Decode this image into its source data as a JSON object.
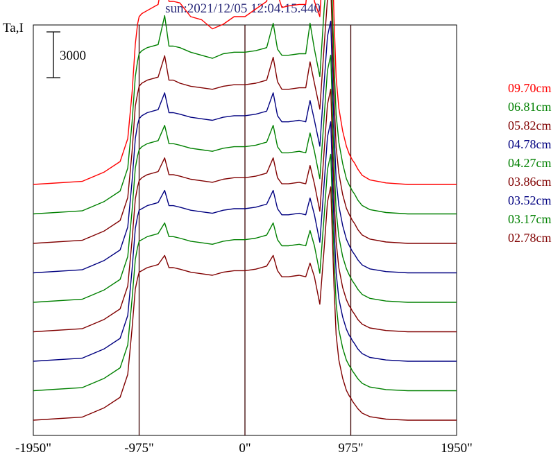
{
  "chart_data": {
    "type": "line",
    "title": "sun:2021/12/05 12:04:15.440",
    "ylabel": "Ta,I",
    "scale_bar_label": "3000",
    "scale_bar_value": 3000,
    "xlim": [
      -1950,
      1950
    ],
    "x_ticks": [
      {
        "value": -1950,
        "label": "-1950\""
      },
      {
        "value": -975,
        "label": "-975\""
      },
      {
        "value": 0,
        "label": "0\""
      },
      {
        "value": 975,
        "label": "975\""
      },
      {
        "value": 1950,
        "label": "1950\""
      }
    ],
    "vertical_lines": [
      -975,
      0,
      975
    ],
    "profile_x": [
      -1950,
      -1500,
      -1300,
      -1150,
      -1080,
      -1040,
      -1010,
      -990,
      -975,
      -950,
      -900,
      -800,
      -740,
      -700,
      -660,
      -600,
      -500,
      -400,
      -300,
      -200,
      -100,
      0,
      100,
      200,
      260,
      300,
      340,
      400,
      500,
      560,
      600,
      640,
      690,
      730,
      760,
      790,
      820,
      840,
      865,
      900,
      935,
      960,
      975,
      990,
      1010,
      1040,
      1080,
      1150,
      1300,
      1500,
      1950
    ],
    "series": [
      {
        "name": "09.70cm",
        "color": "#ff0000",
        "values": [
          0,
          200,
          800,
          1500,
          3000,
          6000,
          9200,
          10500,
          11000,
          11200,
          11400,
          11800,
          14200,
          12000,
          12000,
          11900,
          11000,
          10800,
          10200,
          10500,
          11000,
          11000,
          11500,
          12000,
          14000,
          12500,
          11600,
          11700,
          11800,
          11800,
          14500,
          12000,
          11000,
          16000,
          18000,
          19000,
          11000,
          7000,
          5000,
          3500,
          2500,
          2000,
          1800,
          1600,
          1400,
          1000,
          600,
          300,
          100,
          0,
          0
        ]
      },
      {
        "name": "06.81cm",
        "color": "#008000",
        "values": [
          0,
          200,
          800,
          1500,
          3000,
          6000,
          9000,
          10000,
          10500,
          10700,
          10900,
          11100,
          13000,
          11000,
          11000,
          10900,
          10600,
          10400,
          10200,
          10500,
          10600,
          10600,
          10700,
          10900,
          12500,
          10800,
          10400,
          10400,
          10500,
          10500,
          12500,
          10800,
          9000,
          13500,
          16000,
          17500,
          10000,
          6500,
          4700,
          3300,
          2300,
          1900,
          1700,
          1500,
          1300,
          900,
          550,
          280,
          90,
          0,
          0
        ]
      },
      {
        "name": "05.82cm",
        "color": "#800000",
        "values": [
          0,
          200,
          800,
          1500,
          3000,
          6000,
          9000,
          9800,
          10300,
          10500,
          10700,
          10900,
          12300,
          10700,
          10700,
          10500,
          10300,
          10200,
          10100,
          10300,
          10400,
          10400,
          10500,
          10700,
          12200,
          10600,
          10100,
          10100,
          10200,
          10200,
          11900,
          10500,
          8800,
          13000,
          16000,
          17000,
          9800,
          6300,
          4600,
          3200,
          2300,
          1900,
          1700,
          1500,
          1300,
          900,
          550,
          280,
          90,
          0,
          0
        ]
      },
      {
        "name": "04.78cm",
        "color": "#000080",
        "values": [
          0,
          200,
          800,
          1500,
          3000,
          6000,
          8800,
          9700,
          10100,
          10300,
          10500,
          10700,
          11800,
          10500,
          10500,
          10400,
          10200,
          10100,
          10000,
          10200,
          10300,
          10300,
          10400,
          10600,
          11800,
          10300,
          9900,
          9900,
          10000,
          9900,
          11300,
          10000,
          8300,
          12500,
          15500,
          16500,
          9500,
          6100,
          4400,
          3100,
          2200,
          1800,
          1600,
          1400,
          1200,
          850,
          520,
          260,
          80,
          0,
          0
        ]
      },
      {
        "name": "04.27cm",
        "color": "#008000",
        "values": [
          0,
          200,
          800,
          1500,
          3000,
          6000,
          8800,
          9600,
          10000,
          10200,
          10400,
          10600,
          11600,
          10400,
          10400,
          10300,
          10100,
          10000,
          9900,
          10100,
          10200,
          10200,
          10300,
          10500,
          11600,
          10200,
          9800,
          9800,
          9900,
          9800,
          11100,
          9900,
          8100,
          12200,
          15200,
          16200,
          9300,
          6000,
          4300,
          3000,
          2200,
          1800,
          1600,
          1400,
          1200,
          850,
          520,
          260,
          80,
          0,
          0
        ]
      },
      {
        "name": "03.86cm",
        "color": "#800000",
        "values": [
          0,
          200,
          800,
          1500,
          3000,
          6000,
          8700,
          9500,
          9900,
          10100,
          10300,
          10500,
          11400,
          10300,
          10300,
          10200,
          10000,
          9900,
          9800,
          10000,
          10100,
          10100,
          10200,
          10400,
          11400,
          10100,
          9700,
          9700,
          9800,
          9700,
          10900,
          9700,
          7900,
          11900,
          14900,
          15900,
          9100,
          5900,
          4200,
          2900,
          2100,
          1700,
          1550,
          1350,
          1150,
          800,
          500,
          250,
          80,
          0,
          0
        ]
      },
      {
        "name": "03.52cm",
        "color": "#000080",
        "values": [
          0,
          200,
          800,
          1500,
          3000,
          6000,
          8700,
          9500,
          9900,
          10000,
          10200,
          10400,
          11200,
          10200,
          10200,
          10100,
          9900,
          9800,
          9700,
          9900,
          10000,
          10000,
          10100,
          10300,
          11200,
          10000,
          9600,
          9600,
          9700,
          9600,
          10700,
          9600,
          7800,
          11700,
          14700,
          15700,
          9000,
          5800,
          4100,
          2900,
          2100,
          1700,
          1550,
          1350,
          1150,
          800,
          500,
          250,
          80,
          0,
          0
        ]
      },
      {
        "name": "03.17cm",
        "color": "#008000",
        "values": [
          0,
          200,
          800,
          1500,
          3000,
          6000,
          8600,
          9400,
          9800,
          9900,
          10100,
          10300,
          11000,
          10100,
          10100,
          10000,
          9800,
          9700,
          9600,
          9800,
          9900,
          9900,
          10000,
          10200,
          11000,
          9900,
          9500,
          9500,
          9600,
          9500,
          10500,
          9500,
          7700,
          11500,
          14500,
          15500,
          8900,
          5700,
          4000,
          2800,
          2000,
          1650,
          1500,
          1300,
          1100,
          780,
          480,
          240,
          75,
          0,
          0
        ]
      },
      {
        "name": "02.78cm",
        "color": "#800000",
        "values": [
          0,
          200,
          800,
          1500,
          3000,
          6000,
          8600,
          9300,
          9700,
          9800,
          10000,
          10200,
          10800,
          10000,
          10000,
          9900,
          9700,
          9600,
          9500,
          9700,
          9800,
          9800,
          9900,
          10100,
          10800,
          9800,
          9400,
          9400,
          9500,
          9400,
          10300,
          9400,
          7600,
          11300,
          14300,
          15300,
          8800,
          5600,
          3950,
          2750,
          1950,
          1600,
          1450,
          1250,
          1050,
          750,
          460,
          230,
          70,
          0,
          0
        ]
      }
    ],
    "grid": false,
    "legend_position": "right"
  }
}
